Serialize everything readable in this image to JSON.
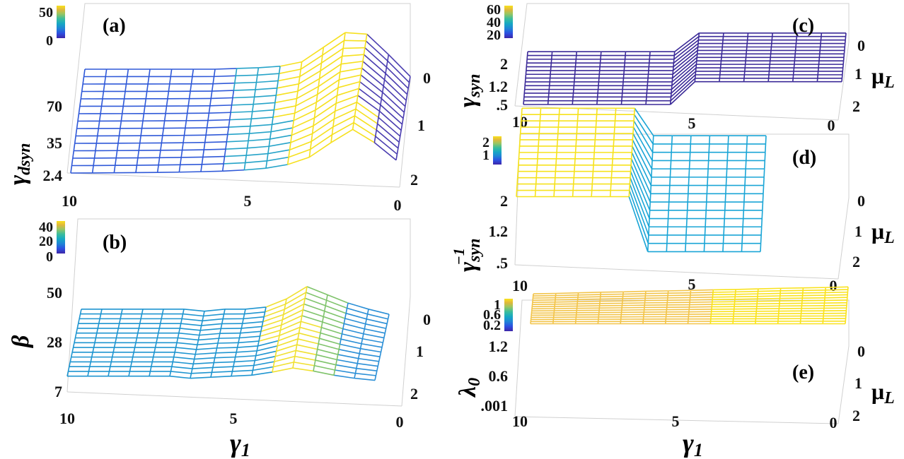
{
  "chart_data": [
    {
      "id": "a",
      "type": "surface",
      "panel_label": "(a)",
      "ylabel": "γdsyn",
      "ylabel_main": "γ",
      "ylabel_sub": "dsyn",
      "xlabel": "",
      "depth_label": "",
      "x_ticks": [
        "10",
        "5",
        "0"
      ],
      "z_ticks": [
        "70",
        "35",
        "2.4"
      ],
      "depth_ticks": [
        "0",
        "1",
        "2"
      ],
      "colorbar_ticks": [
        "50",
        "0"
      ],
      "xlim": [
        10,
        0
      ],
      "depth_lim": [
        0,
        2
      ],
      "zlim": [
        2.4,
        70
      ],
      "colorbar_range": [
        0,
        50
      ],
      "x_values": [
        10,
        9.4,
        8.8,
        8.2,
        7.6,
        7.0,
        6.4,
        5.8,
        5.2,
        4.6,
        4.0,
        3.4,
        2.8,
        2.2,
        1.6,
        1.0
      ],
      "front_profile": [
        2.4,
        2.5,
        2.7,
        2.9,
        3.2,
        3.6,
        4.2,
        5.0,
        6.5,
        9.0,
        14,
        24,
        44,
        62,
        44,
        20
      ],
      "back_profile": [
        70,
        70,
        70,
        70,
        70,
        70,
        70,
        71,
        72,
        74,
        80,
        100,
        120,
        118,
        90,
        60
      ],
      "depth_levels": 15
    },
    {
      "id": "b",
      "type": "surface",
      "panel_label": "(b)",
      "ylabel": "β",
      "xlabel": "γ1",
      "depth_label": "",
      "x_ticks": [
        "10",
        "5",
        "0"
      ],
      "z_ticks": [
        "50",
        "28",
        "7"
      ],
      "depth_ticks": [
        "0",
        "1",
        "2"
      ],
      "colorbar_ticks": [
        "40",
        "20",
        "0"
      ],
      "xlim": [
        10,
        0
      ],
      "depth_lim": [
        0,
        2
      ],
      "zlim": [
        7,
        50
      ],
      "colorbar_range": [
        0,
        40
      ],
      "x_values": [
        10,
        9.4,
        8.8,
        8.2,
        7.6,
        7.0,
        6.4,
        5.8,
        5.2,
        4.6,
        4.0,
        3.4,
        2.8,
        2.2,
        1.6,
        1.0
      ],
      "front_profile": [
        12,
        12,
        12,
        12,
        12,
        12,
        10,
        11,
        12,
        13,
        16,
        20,
        17,
        13,
        10,
        8
      ],
      "back_profile": [
        30,
        30,
        30,
        30,
        30,
        30,
        28,
        30,
        30,
        32,
        40,
        52,
        44,
        36,
        30,
        25
      ],
      "depth_levels": 15
    },
    {
      "id": "c",
      "type": "surface",
      "panel_label": "(c)",
      "ylabel": "γsyn",
      "ylabel_main": "γ",
      "ylabel_sub": "syn",
      "xlabel": "",
      "depth_label": "μL",
      "x_ticks": [
        "10",
        "5",
        "0"
      ],
      "z_ticks": [
        "2",
        "1.2",
        ".5"
      ],
      "depth_ticks": [
        "0",
        "1",
        "2"
      ],
      "colorbar_ticks": [
        "60",
        "40",
        "20"
      ],
      "xlim": [
        10,
        0
      ],
      "depth_lim": [
        0,
        2
      ],
      "zlim": [
        0.5,
        2
      ],
      "colorbar_range": [
        0,
        60
      ],
      "x_values": [
        10,
        9.4,
        8.8,
        8.2,
        7.6,
        7.0,
        6.4,
        5.8,
        5.2,
        4.6,
        4.0,
        3.4,
        2.8,
        2.2
      ],
      "front_profile": [
        0.5,
        0.5,
        0.5,
        0.5,
        0.5,
        0.5,
        0.5,
        1.6,
        1.6,
        1.6,
        1.6,
        1.6,
        1.6,
        1.6
      ],
      "back_profile": [
        1.4,
        1.4,
        1.4,
        1.4,
        1.4,
        1.4,
        1.4,
        2.3,
        2.3,
        2.3,
        2.3,
        2.3,
        2.3,
        2.3
      ],
      "depth_levels": 15
    },
    {
      "id": "d",
      "type": "surface",
      "panel_label": "(d)",
      "ylabel": "γsyn−1",
      "ylabel_main": "γ",
      "ylabel_sub": "syn",
      "ylabel_sup": "−1",
      "xlabel": "",
      "depth_label": "μL",
      "x_ticks": [
        "10",
        "5",
        "0"
      ],
      "z_ticks": [
        "2",
        "1.2",
        ".5"
      ],
      "depth_ticks": [
        "0",
        "1",
        "2"
      ],
      "colorbar_ticks": [
        "2",
        "1"
      ],
      "xlim": [
        10,
        0
      ],
      "depth_lim": [
        0,
        2
      ],
      "zlim": [
        0.5,
        2
      ],
      "colorbar_range": [
        0,
        2
      ],
      "x_values": [
        10,
        9.4,
        8.8,
        8.2,
        7.6,
        7.0,
        6.4,
        5.8,
        5.2,
        4.6,
        4.0,
        3.4,
        2.8,
        2.2
      ],
      "front_profile": [
        2.0,
        2.0,
        2.0,
        2.0,
        2.0,
        2.0,
        2.0,
        0.6,
        0.6,
        0.6,
        0.6,
        0.6,
        0.6,
        0.6
      ],
      "back_profile": [
        2.6,
        2.6,
        2.6,
        2.6,
        2.6,
        2.6,
        2.6,
        1.9,
        1.9,
        1.9,
        1.9,
        1.9,
        1.9,
        1.9
      ],
      "depth_levels": 15
    },
    {
      "id": "e",
      "type": "surface",
      "panel_label": "(e)",
      "ylabel": "λ0",
      "ylabel_main": "λ",
      "ylabel_sub": "0",
      "xlabel": "γ1",
      "depth_label": "μL",
      "x_ticks": [
        "10",
        "5",
        "0"
      ],
      "z_ticks": [
        "1.2",
        "0.6",
        ".001"
      ],
      "depth_ticks": [
        "0",
        "1",
        "2"
      ],
      "colorbar_ticks": [
        "1",
        "0.6",
        "0.2"
      ],
      "xlim": [
        10,
        0
      ],
      "depth_lim": [
        0,
        2
      ],
      "zlim": [
        0.001,
        1.2
      ],
      "colorbar_range": [
        0,
        1
      ],
      "x_values": [
        10,
        9.3,
        8.6,
        7.9,
        7.2,
        6.5,
        5.8,
        5.1,
        4.4,
        3.7,
        3.0,
        2.3,
        1.6,
        0.9,
        0.2
      ],
      "front_profile": [
        1.2,
        1.2,
        1.2,
        1.2,
        1.2,
        1.2,
        1.2,
        1.2,
        1.2,
        1.2,
        1.2,
        1.2,
        1.2,
        1.2,
        1.2
      ],
      "back_profile": [
        1.4,
        1.42,
        1.45,
        1.48,
        1.5,
        1.53,
        1.55,
        1.57,
        1.6,
        1.62,
        1.65,
        1.68,
        1.7,
        1.72,
        1.75
      ],
      "depth_levels": 15
    }
  ],
  "shared": {
    "xlabel_main": "γ",
    "xlabel_sub": "1",
    "mu_main": "μ",
    "mu_sub": "L"
  },
  "colors": {
    "colormap": [
      "#3e26a8",
      "#2c4fe1",
      "#1f85d6",
      "#16a8c3",
      "#3cbd9b",
      "#9ac662",
      "#e1b83a",
      "#f9e21d"
    ]
  }
}
